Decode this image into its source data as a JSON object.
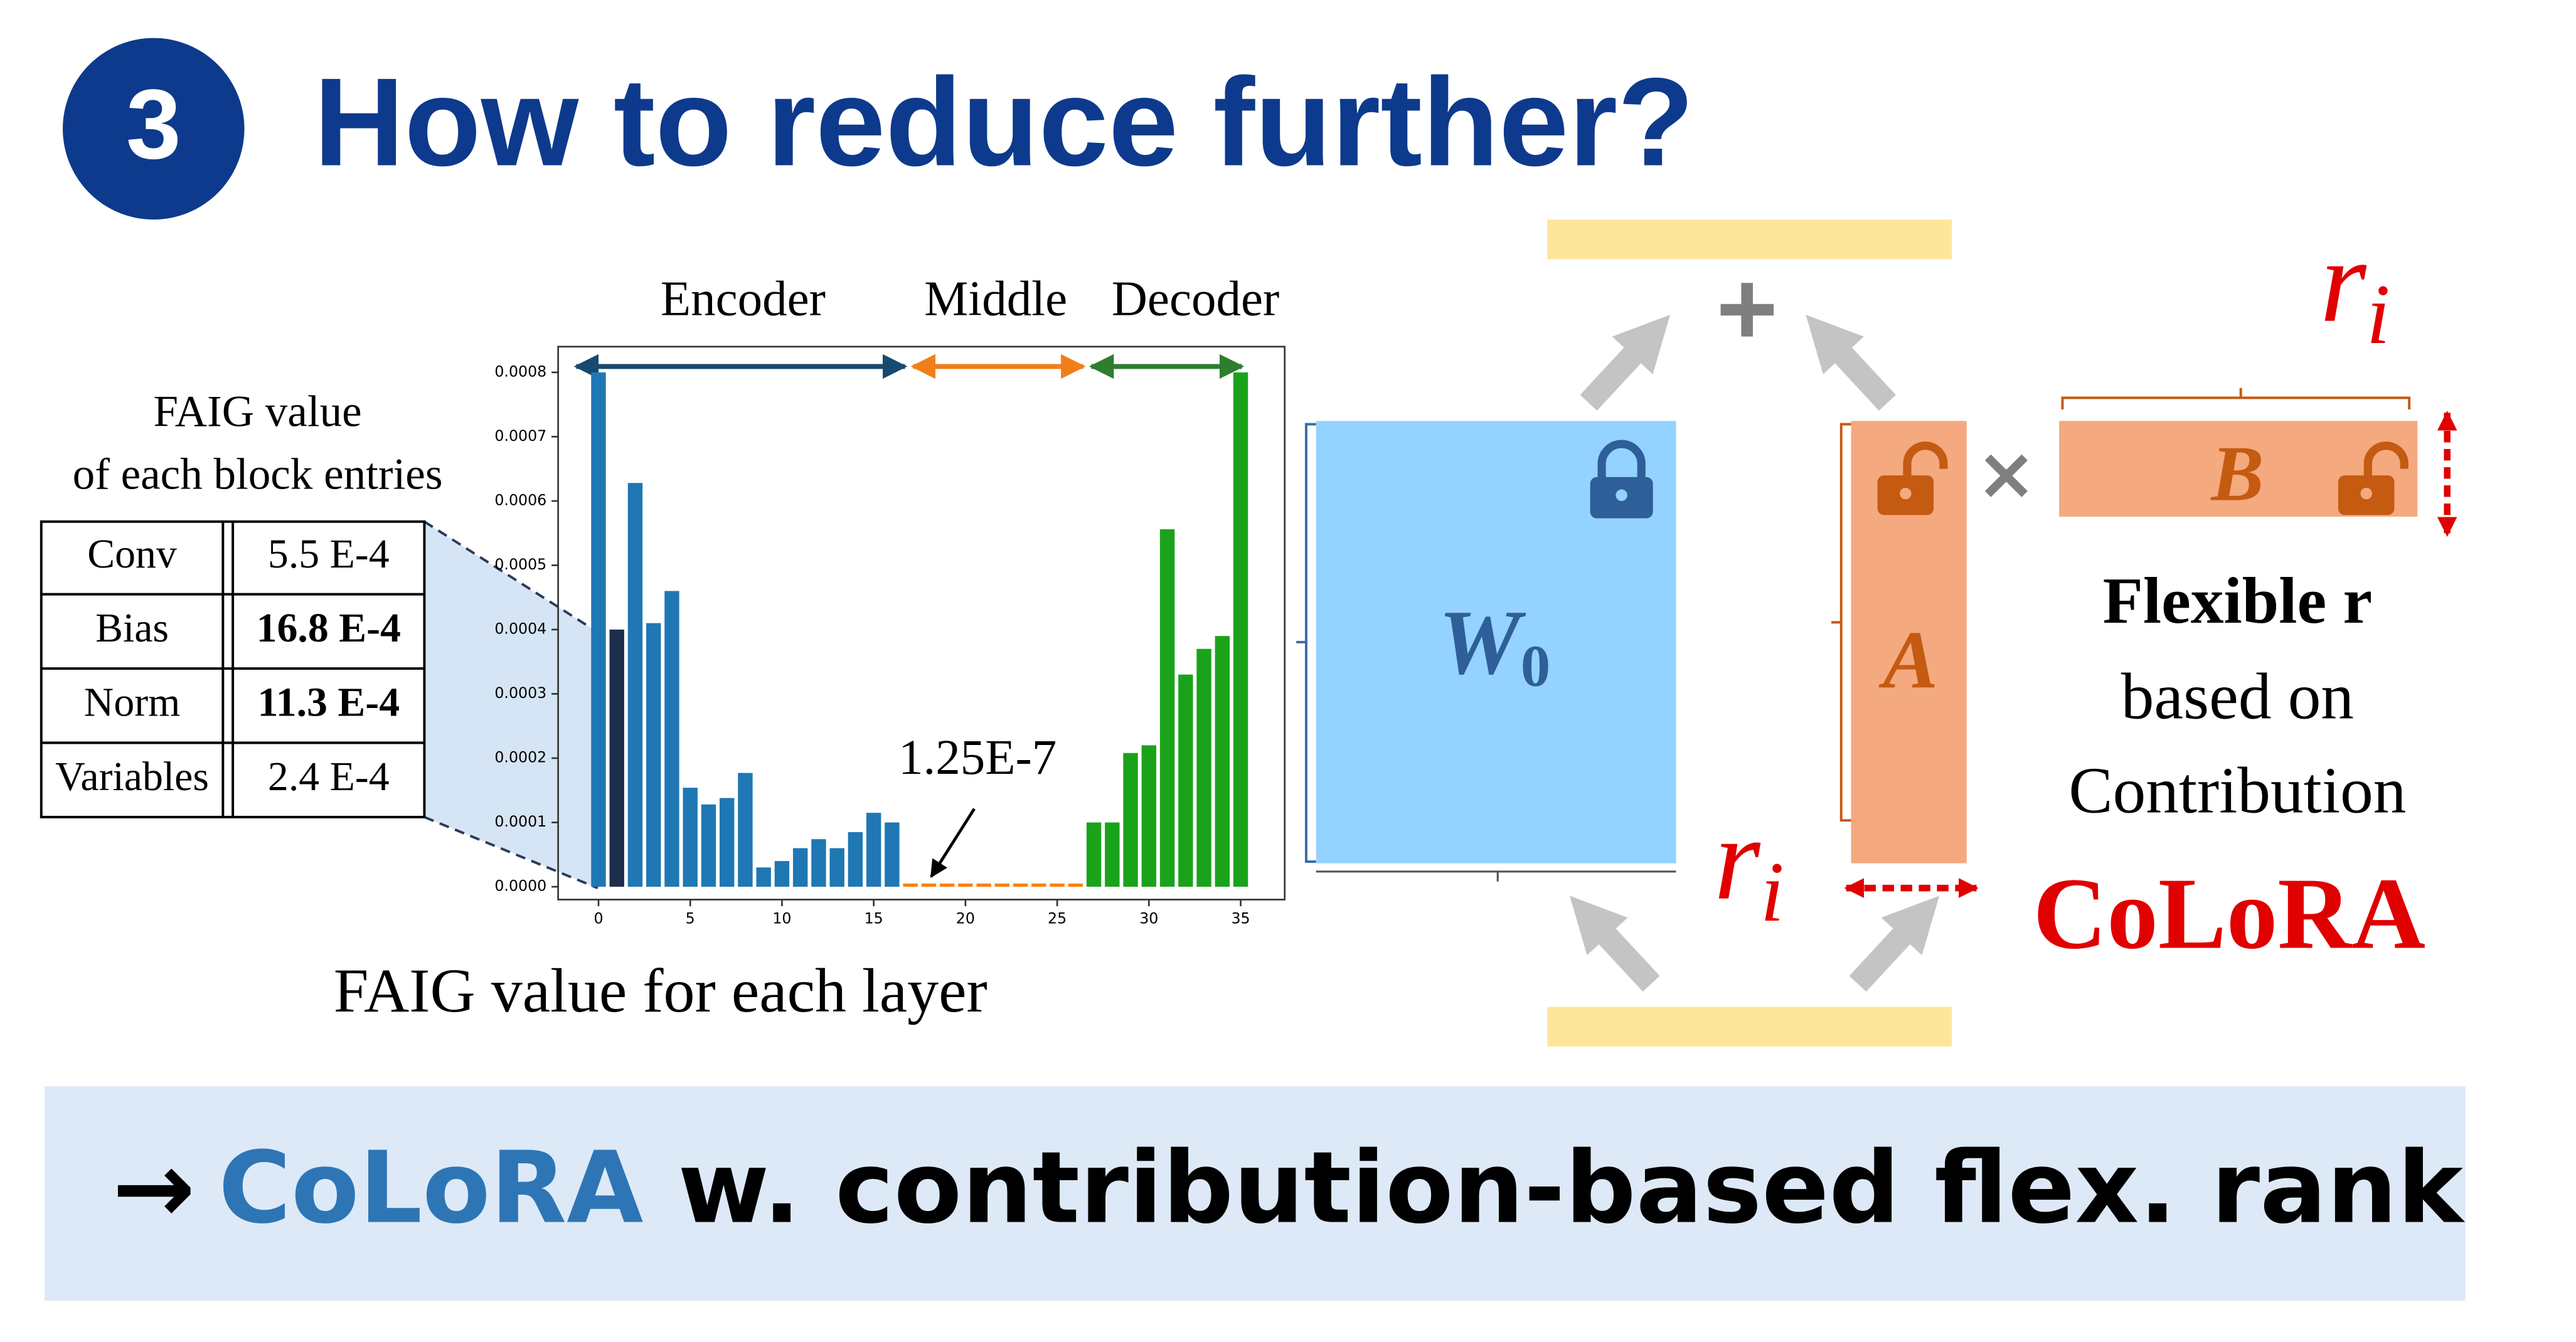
{
  "badge": "3",
  "title": "How to reduce further?",
  "table": {
    "caption": [
      "FAIG value",
      "of each block entries"
    ],
    "rows": [
      [
        "Conv",
        "5.5 E-4"
      ],
      [
        "Bias",
        "16.8 E-4"
      ],
      [
        "Norm",
        "11.3 E-4"
      ],
      [
        "Variables",
        "2.4 E-4"
      ]
    ]
  },
  "chart_data": {
    "type": "bar",
    "sections": [
      "Encoder",
      "Middle",
      "Decoder"
    ],
    "caption": "FAIG value for each layer",
    "annotation": "1.25E-7",
    "categories": [
      0,
      1,
      2,
      3,
      4,
      5,
      6,
      7,
      8,
      9,
      10,
      11,
      12,
      13,
      14,
      15,
      16,
      17,
      18,
      19,
      20,
      21,
      22,
      23,
      24,
      25,
      26,
      27,
      28,
      29,
      30,
      31,
      32,
      33,
      34,
      35
    ],
    "values": [
      0.0008,
      0.0004,
      0.000628,
      0.00041,
      0.00046,
      0.000154,
      0.000128,
      0.000138,
      0.000177,
      3e-05,
      4e-05,
      6e-05,
      7.4e-05,
      6e-05,
      8.5e-05,
      0.000115,
      0.0001,
      5e-06,
      5e-06,
      5e-06,
      5e-06,
      5e-06,
      5e-06,
      5e-06,
      5e-06,
      5e-06,
      5e-06,
      0.0001,
      0.0001,
      0.000208,
      0.00022,
      0.000556,
      0.00033,
      0.00037,
      0.00039,
      0.0008
    ],
    "colors": [
      "#1f77b4",
      "#1c2f4d",
      "#1f77b4",
      "#1f77b4",
      "#1f77b4",
      "#1f77b4",
      "#1f77b4",
      "#1f77b4",
      "#1f77b4",
      "#1f77b4",
      "#1f77b4",
      "#1f77b4",
      "#1f77b4",
      "#1f77b4",
      "#1f77b4",
      "#1f77b4",
      "#1f77b4",
      "#ff7f0e",
      "#ff7f0e",
      "#ff7f0e",
      "#ff7f0e",
      "#ff7f0e",
      "#ff7f0e",
      "#ff7f0e",
      "#ff7f0e",
      "#ff7f0e",
      "#ff7f0e",
      "#1aa31a",
      "#1aa31a",
      "#1aa31a",
      "#1aa31a",
      "#1aa31a",
      "#1aa31a",
      "#1aa31a",
      "#1aa31a",
      "#1aa31a"
    ],
    "xlim": [
      -2.2,
      37.4
    ],
    "ylim": [
      -2e-05,
      0.00084
    ],
    "xticks": [
      0,
      5,
      10,
      15,
      20,
      25,
      30,
      35
    ],
    "yticks": [
      {
        "value": 0,
        "label": "0.0000"
      },
      {
        "value": 0.0001,
        "label": "0.0001"
      },
      {
        "value": 0.0002,
        "label": "0.0002"
      },
      {
        "value": 0.0003,
        "label": "0.0003"
      },
      {
        "value": 0.0004,
        "label": "0.0004"
      },
      {
        "value": 0.0005,
        "label": "0.0005"
      },
      {
        "value": 0.0006,
        "label": "0.0006"
      },
      {
        "value": 0.0007,
        "label": "0.0007"
      },
      {
        "value": 0.0008,
        "label": "0.0008"
      }
    ]
  },
  "diagram": {
    "w0": {
      "symbol": "W",
      "subscript": "0"
    },
    "a": "A",
    "b": "B",
    "plus": "+",
    "times": "×",
    "rank": {
      "symbol": "r",
      "subscript": "i"
    },
    "note": [
      "Flexible r",
      "based on",
      "Contribution"
    ],
    "method": "CoLoRA"
  },
  "footer": {
    "arrow": "→",
    "method": "CoLoRA",
    "text": " w. contribution-based flex. rank"
  }
}
